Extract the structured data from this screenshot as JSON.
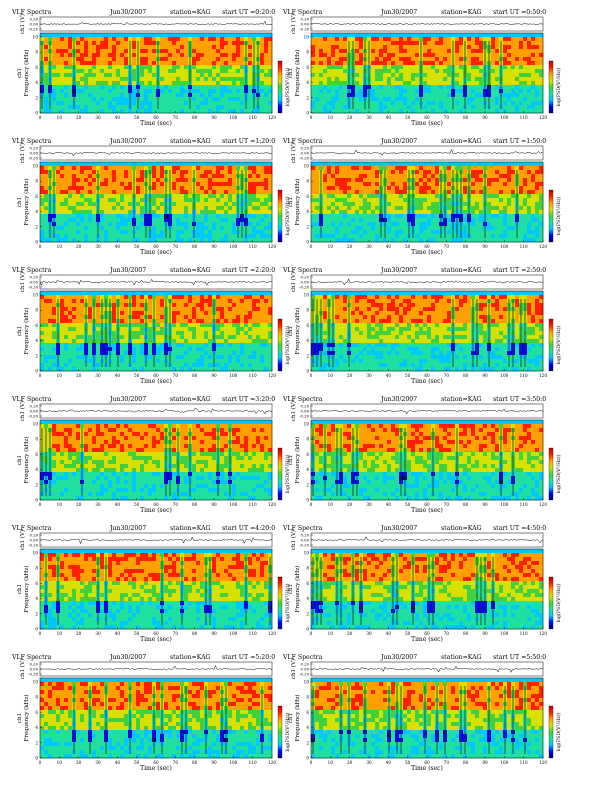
{
  "header": {
    "title": "VLF Spectra",
    "station": "station=KAG",
    "start_label": "start UT"
  },
  "axes": {
    "ch1_label": "ch1 (V)",
    "ch1_ticks": [
      "0.20",
      "0.00",
      "-0.20"
    ],
    "freq_label": "Frequency (kHz)",
    "freq_side_label": "ch1",
    "freq_ticks": [
      "0",
      "2",
      "4",
      "6",
      "8",
      "10"
    ],
    "time_label": "Time (sec)",
    "time_ticks": [
      "0",
      "10",
      "20",
      "30",
      "40",
      "50",
      "60",
      "70",
      "80",
      "90",
      "100",
      "110",
      "120"
    ],
    "colorbar_label": "log(PSD(V²/Hz))"
  },
  "colorbar": {
    "stops": [
      "#000080",
      "#0000ff",
      "#00c8ff",
      "#20e0a0",
      "#40d040",
      "#d8e000",
      "#ffa000",
      "#ff2000",
      "#c00000"
    ]
  },
  "chart_data": [
    {
      "type": "heatmap",
      "date": "Jun30/2007",
      "start_ut": "=0:20:0",
      "x_range": [
        0,
        120
      ],
      "y_range": [
        0,
        10
      ],
      "xlabel": "Time (sec)",
      "ylabel": "Frequency (kHz)"
    },
    {
      "type": "heatmap",
      "date": "Jun30/2007",
      "start_ut": "=0:50:0",
      "x_range": [
        0,
        120
      ],
      "y_range": [
        0,
        10
      ],
      "xlabel": "Time (sec)",
      "ylabel": "Frequency (kHz)"
    },
    {
      "type": "heatmap",
      "date": "Jun30/2007",
      "start_ut": "=1:20:0",
      "x_range": [
        0,
        120
      ],
      "y_range": [
        0,
        10
      ],
      "xlabel": "Time (sec)",
      "ylabel": "Frequency (kHz)"
    },
    {
      "type": "heatmap",
      "date": "Jun30/2007",
      "start_ut": "=1:50:0",
      "x_range": [
        0,
        120
      ],
      "y_range": [
        0,
        10
      ],
      "xlabel": "Time (sec)",
      "ylabel": "Frequency (kHz)"
    },
    {
      "type": "heatmap",
      "date": "Jun30/2007",
      "start_ut": "=2:20:0",
      "x_range": [
        0,
        120
      ],
      "y_range": [
        0,
        10
      ],
      "xlabel": "Time (sec)",
      "ylabel": "Frequency (kHz)"
    },
    {
      "type": "heatmap",
      "date": "Jun30/2007",
      "start_ut": "=2:50:0",
      "x_range": [
        0,
        120
      ],
      "y_range": [
        0,
        10
      ],
      "xlabel": "Time (sec)",
      "ylabel": "Frequency (kHz)"
    },
    {
      "type": "heatmap",
      "date": "Jun30/2007",
      "start_ut": "=3:20:0",
      "x_range": [
        0,
        120
      ],
      "y_range": [
        0,
        10
      ],
      "xlabel": "Time (sec)",
      "ylabel": "Frequency (kHz)"
    },
    {
      "type": "heatmap",
      "date": "Jun30/2007",
      "start_ut": "=3:50:0",
      "x_range": [
        0,
        120
      ],
      "y_range": [
        0,
        10
      ],
      "xlabel": "Time (sec)",
      "ylabel": "Frequency (kHz)"
    },
    {
      "type": "heatmap",
      "date": "Jun30/2007",
      "start_ut": "=4:20:0",
      "x_range": [
        0,
        120
      ],
      "y_range": [
        0,
        10
      ],
      "xlabel": "Time (sec)",
      "ylabel": "Frequency (kHz)"
    },
    {
      "type": "heatmap",
      "date": "Jun30/2007",
      "start_ut": "=4:50:0",
      "x_range": [
        0,
        120
      ],
      "y_range": [
        0,
        10
      ],
      "xlabel": "Time (sec)",
      "ylabel": "Frequency (kHz)"
    },
    {
      "type": "heatmap",
      "date": "Jun30/2007",
      "start_ut": "=5:20:0",
      "x_range": [
        0,
        120
      ],
      "y_range": [
        0,
        10
      ],
      "xlabel": "Time (sec)",
      "ylabel": "Frequency (kHz)"
    },
    {
      "type": "heatmap",
      "date": "Jun30/2007",
      "start_ut": "=5:50:0",
      "x_range": [
        0,
        120
      ],
      "y_range": [
        0,
        10
      ],
      "xlabel": "Time (sec)",
      "ylabel": "Frequency (kHz)"
    }
  ]
}
